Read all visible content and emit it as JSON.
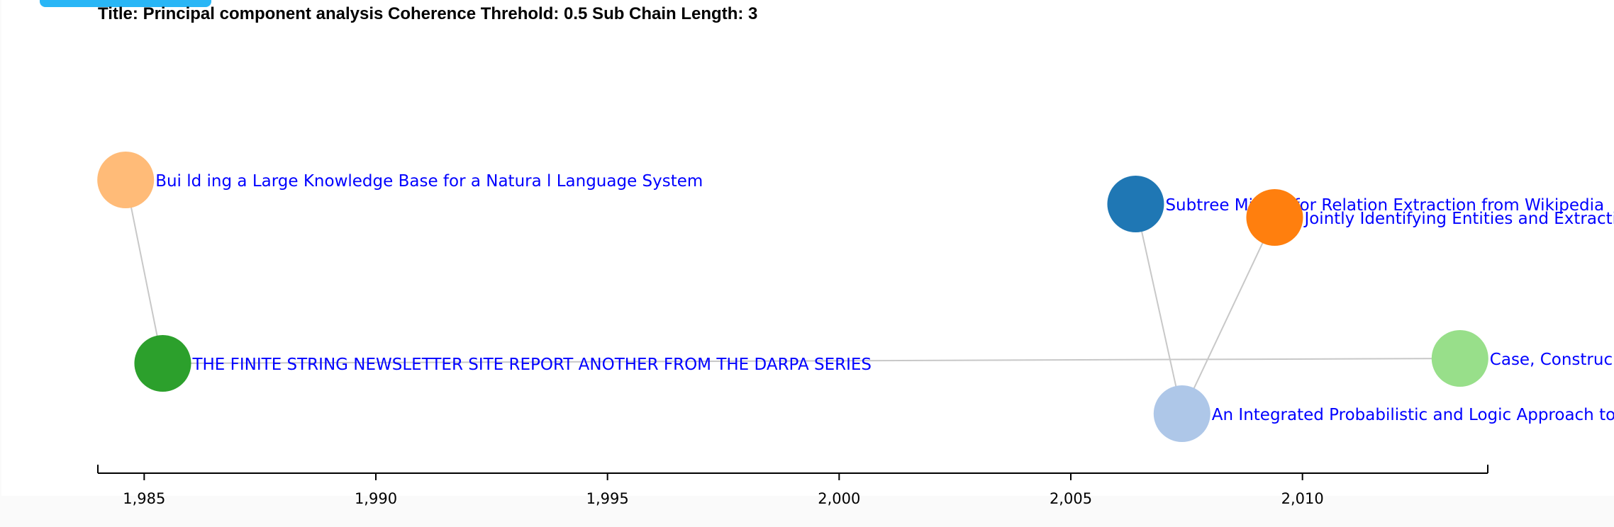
{
  "header": {
    "title": "Title: Principal component analysis Coherence Threhold: 0.5 Sub Chain Length: 3"
  },
  "colors": {
    "label": "#0000ff",
    "link": "#c8c8c8",
    "button": "#29b6f6"
  },
  "axis": {
    "domain": [
      1984,
      2014
    ],
    "ticks": [
      1985,
      1990,
      1995,
      2000,
      2005,
      2010
    ],
    "tick_labels": [
      "1,985",
      "1,990",
      "1,995",
      "2,000",
      "2,005",
      "2,010"
    ]
  },
  "nodes": [
    {
      "id": "n1",
      "year": 1984.6,
      "label": "Bui ld ing a Large Knowledge Base for a Natura l Language System",
      "color": "#ffbb78"
    },
    {
      "id": "n2",
      "year": 1985.4,
      "label": "THE FINITE STRING NEWSLETTER SITE REPORT ANOTHER FROM THE DARPA SERIES",
      "color": "#2ca02c"
    },
    {
      "id": "n3",
      "year": 2006.4,
      "label": "Subtree Mining for Relation Extraction from Wikipedia",
      "color": "#1f77b4"
    },
    {
      "id": "n4",
      "year": 2007.4,
      "label": "An Integrated Probabilistic and Logic Approach to",
      "color": "#aec7e8"
    },
    {
      "id": "n5",
      "year": 2009.4,
      "label": "Jointly Identifying Entities and Extractin",
      "color": "#ff7f0e"
    },
    {
      "id": "n6",
      "year": 2013.4,
      "label": "Case, Construc",
      "color": "#98df8a"
    }
  ],
  "links": [
    {
      "source": "n1",
      "target": "n2"
    },
    {
      "source": "n2",
      "target": "n6"
    },
    {
      "source": "n3",
      "target": "n4"
    },
    {
      "source": "n5",
      "target": "n4"
    }
  ]
}
